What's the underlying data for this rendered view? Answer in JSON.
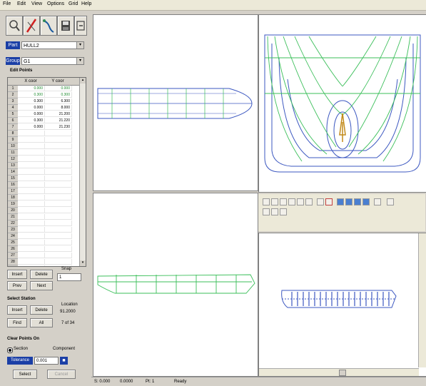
{
  "menu": [
    "File",
    "Edit",
    "View",
    "Options",
    "Grid",
    "Help"
  ],
  "part": {
    "label": "Part",
    "value": "HULL2"
  },
  "group": {
    "label": "Group",
    "value": "G1"
  },
  "edit_points_title": "Edit Points",
  "grid": {
    "col_x": "X coor",
    "col_y": "Y coor",
    "rows": [
      {
        "n": "1",
        "x": "0.000",
        "y": "0.000"
      },
      {
        "n": "2",
        "x": "0.300",
        "y": "0.300"
      },
      {
        "n": "3",
        "x": "0.300",
        "y": "6.300"
      },
      {
        "n": "4",
        "x": "0.000",
        "y": "8.000"
      },
      {
        "n": "5",
        "x": "0.000",
        "y": "21.200"
      },
      {
        "n": "6",
        "x": "0.300",
        "y": "21.220"
      },
      {
        "n": "7",
        "x": "0.000",
        "y": "21.230"
      },
      {
        "n": "8",
        "x": "",
        "y": ""
      },
      {
        "n": "9",
        "x": "",
        "y": ""
      },
      {
        "n": "10",
        "x": "",
        "y": ""
      },
      {
        "n": "11",
        "x": "",
        "y": ""
      },
      {
        "n": "12",
        "x": "",
        "y": ""
      },
      {
        "n": "13",
        "x": "",
        "y": ""
      },
      {
        "n": "14",
        "x": "",
        "y": ""
      },
      {
        "n": "15",
        "x": "",
        "y": ""
      },
      {
        "n": "16",
        "x": "",
        "y": ""
      },
      {
        "n": "17",
        "x": "",
        "y": ""
      },
      {
        "n": "18",
        "x": "",
        "y": ""
      },
      {
        "n": "19",
        "x": "",
        "y": ""
      },
      {
        "n": "20",
        "x": "",
        "y": ""
      },
      {
        "n": "21",
        "x": "",
        "y": ""
      },
      {
        "n": "22",
        "x": "",
        "y": ""
      },
      {
        "n": "23",
        "x": "",
        "y": ""
      },
      {
        "n": "24",
        "x": "",
        "y": ""
      },
      {
        "n": "25",
        "x": "",
        "y": ""
      },
      {
        "n": "26",
        "x": "",
        "y": ""
      },
      {
        "n": "27",
        "x": "",
        "y": ""
      },
      {
        "n": "28",
        "x": "",
        "y": ""
      },
      {
        "n": "29",
        "x": "",
        "y": ""
      }
    ]
  },
  "points_buttons": {
    "insert": "Insert",
    "delete": "Delete",
    "prev": "Prev",
    "next": "Next",
    "snap_label": "Snap",
    "snap_value": "1"
  },
  "station": {
    "title": "Select Station",
    "insert": "Insert",
    "delete": "Delete",
    "find": "Find",
    "all": "All",
    "location_label": "Location",
    "location_value": "91.2000",
    "count": "7 of 34"
  },
  "clear": {
    "title": "Clear Points On",
    "section": "Section",
    "component": "Component",
    "tolerance_label": "Tolerance",
    "tolerance_value": "0.001",
    "select": "Select",
    "cancel": "Cancel"
  },
  "status": {
    "s1": "S: 0.000",
    "s2": "0.0000",
    "s3": "Pt: 1",
    "s4": "Ready"
  }
}
